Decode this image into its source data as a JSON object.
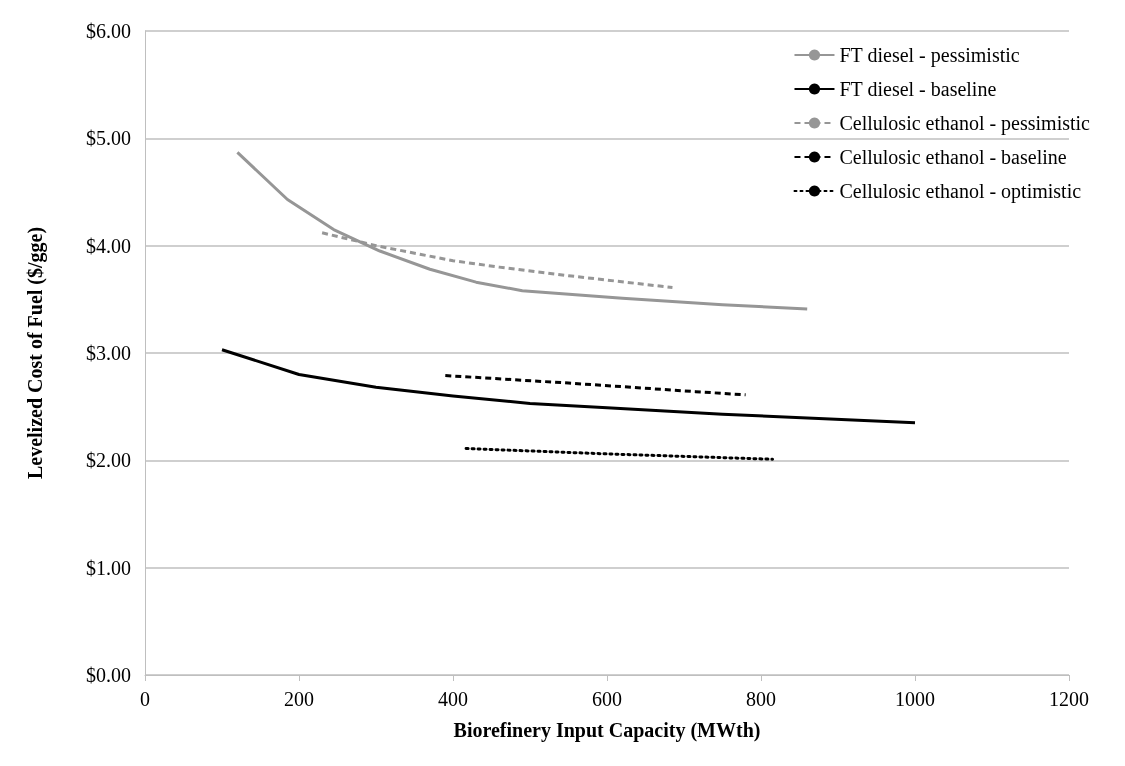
{
  "chart_data": {
    "type": "line",
    "xlabel": "Biorefinery Input Capacity (MWth)",
    "ylabel": "Levelized Cost of Fuel ($/gge)",
    "xlim": [
      0,
      1200
    ],
    "xticks": [
      0,
      200,
      400,
      600,
      800,
      1000,
      1200
    ],
    "ylim": [
      0,
      6
    ],
    "yticks": [
      {
        "value": 0,
        "label": "$0.00"
      },
      {
        "value": 1,
        "label": "$1.00"
      },
      {
        "value": 2,
        "label": "$2.00"
      },
      {
        "value": 3,
        "label": "$3.00"
      },
      {
        "value": 4,
        "label": "$4.00"
      },
      {
        "value": 5,
        "label": "$5.00"
      },
      {
        "value": 6,
        "label": "$6.00"
      }
    ],
    "grid": "y",
    "legend": "top right",
    "marker": "none",
    "series": [
      {
        "name": "FT diesel - pessimistic",
        "color": "#969696",
        "line_style": "solid",
        "x": [
          120,
          185,
          245,
          305,
          370,
          430,
          490,
          620,
          750,
          860
        ],
        "values": [
          4.87,
          4.43,
          4.15,
          3.95,
          3.78,
          3.66,
          3.58,
          3.51,
          3.45,
          3.41
        ]
      },
      {
        "name": "FT diesel - baseline",
        "color": "#000000",
        "line_style": "solid",
        "x": [
          100,
          200,
          300,
          400,
          500,
          600,
          750,
          1000
        ],
        "values": [
          3.03,
          2.8,
          2.68,
          2.6,
          2.53,
          2.49,
          2.43,
          2.35
        ]
      },
      {
        "name": "Cellulosic ethanol - pessimistic",
        "color": "#969696",
        "line_style": "dashed",
        "x": [
          230,
          300,
          400,
          460,
          550,
          685
        ],
        "values": [
          4.12,
          4.0,
          3.86,
          3.8,
          3.72,
          3.61
        ]
      },
      {
        "name": "Cellulosic ethanol - baseline",
        "color": "#000000",
        "line_style": "dashed",
        "x": [
          390,
          550,
          715,
          780
        ],
        "values": [
          2.79,
          2.72,
          2.64,
          2.61
        ]
      },
      {
        "name": "Cellulosic ethanol - optimistic",
        "color": "#000000",
        "line_style": "dotted",
        "x": [
          417,
          600,
          815
        ],
        "values": [
          2.11,
          2.06,
          2.01
        ]
      }
    ]
  }
}
